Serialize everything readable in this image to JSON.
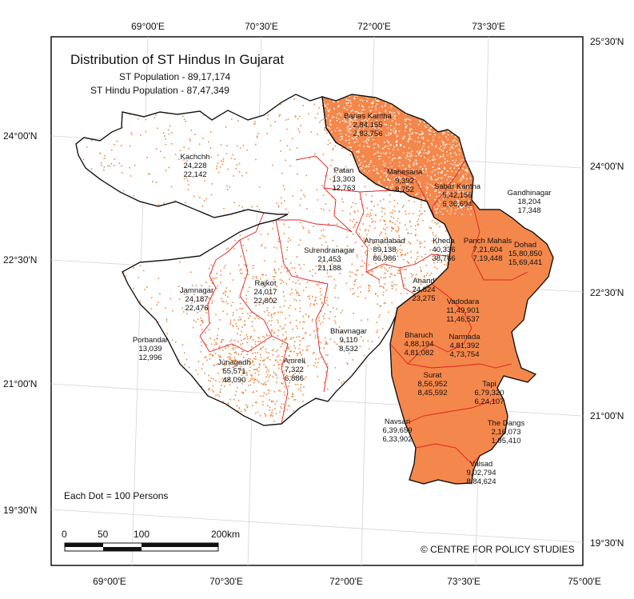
{
  "title": "Distribution of ST Hindus In Gujarat",
  "subtitle_1": "ST Population - 89,17,174",
  "subtitle_2": "ST Hindu Population - 87,47,349",
  "dot_note": "Each Dot = 100 Persons",
  "credit": "© CENTRE FOR POLICY STUDIES",
  "scale": {
    "labels": [
      "0",
      "50",
      "100",
      "200"
    ],
    "unit": "km"
  },
  "colors": {
    "high": "#f4874b",
    "dot": "#f08a44",
    "boundary": "#e02020",
    "outline": "#111111"
  },
  "coords": {
    "top": [
      "69°00'E",
      "70°30'E",
      "72°00'E",
      "73°30'E"
    ],
    "bottom": [
      "69°00'E",
      "70°30'E",
      "72°00'E",
      "73°30'E",
      "75°00'E"
    ],
    "left": [
      "24°00'N",
      "22°30'N",
      "21°00'N",
      "19°30'N"
    ],
    "right": [
      "25°30'N",
      "24°00'N",
      "22°30'N",
      "21°00'N",
      "19°30'N"
    ]
  },
  "districts": [
    {
      "name": "Kachchh",
      "total": "24,228",
      "hindu": "22,142",
      "shaded": false
    },
    {
      "name": "Banas Kantha",
      "total": "2,84,155",
      "hindu": "2,83,756",
      "shaded": true
    },
    {
      "name": "Patan",
      "total": "13,303",
      "hindu": "12,763",
      "shaded": false
    },
    {
      "name": "Mahesana",
      "total": "9,392",
      "hindu": "8,752",
      "shaded": false
    },
    {
      "name": "Sabar Kantha",
      "total": "5,42,156",
      "hindu": "5,36,694",
      "shaded": true
    },
    {
      "name": "Gandhinagar",
      "total": "18,204",
      "hindu": "17,348",
      "shaded": false
    },
    {
      "name": "Ahmadabad",
      "total": "89,138",
      "hindu": "86,986",
      "shaded": false
    },
    {
      "name": "Kheda",
      "total": "40,336",
      "hindu": "38,766",
      "shaded": false
    },
    {
      "name": "Panch Mahals",
      "total": "7,21,604",
      "hindu": "7,19,448",
      "shaded": true
    },
    {
      "name": "Dohad",
      "total": "15,80,850",
      "hindu": "15,69,441",
      "shaded": true
    },
    {
      "name": "Surendranagar",
      "total": "21,453",
      "hindu": "21,188",
      "shaded": false
    },
    {
      "name": "Anand",
      "total": "24,824",
      "hindu": "23,275",
      "shaded": false
    },
    {
      "name": "Jamnagar",
      "total": "24,187",
      "hindu": "22,476",
      "shaded": false
    },
    {
      "name": "Rajkot",
      "total": "24,017",
      "hindu": "22,802",
      "shaded": false
    },
    {
      "name": "Vadodara",
      "total": "11,49,901",
      "hindu": "11,46,537",
      "shaded": true
    },
    {
      "name": "Porbandar",
      "total": "13,039",
      "hindu": "12,996",
      "shaded": false
    },
    {
      "name": "Bhavnagar",
      "total": "9,110",
      "hindu": "8,532",
      "shaded": false
    },
    {
      "name": "Bharuch",
      "total": "4,88,194",
      "hindu": "4,81,082",
      "shaded": true
    },
    {
      "name": "Narmada",
      "total": "4,81,392",
      "hindu": "4,73,754",
      "shaded": true
    },
    {
      "name": "Junagadh",
      "total": "55,571",
      "hindu": "48,090",
      "shaded": false
    },
    {
      "name": "Amreli",
      "total": "7,322",
      "hindu": "6,886",
      "shaded": false
    },
    {
      "name": "Surat",
      "total": "8,56,952",
      "hindu": "8,45,592",
      "shaded": true
    },
    {
      "name": "Tapi",
      "total": "6,79,320",
      "hindu": "6,24,107",
      "shaded": true
    },
    {
      "name": "Navsari",
      "total": "6,39,659",
      "hindu": "6,33,902",
      "shaded": true
    },
    {
      "name": "The Dangs",
      "total": "2,16,073",
      "hindu": "1,95,410",
      "shaded": true
    },
    {
      "name": "Valsad",
      "total": "9,02,794",
      "hindu": "8,84,624",
      "shaded": true
    }
  ]
}
